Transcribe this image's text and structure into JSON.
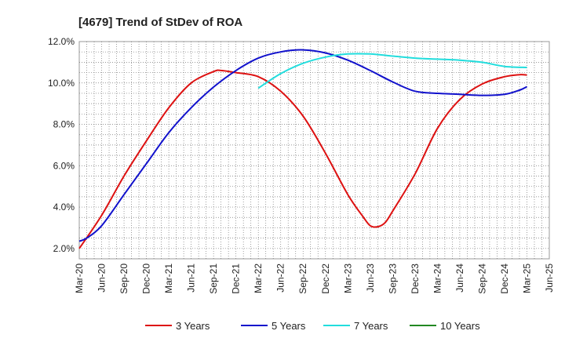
{
  "chart_data": {
    "type": "line",
    "title": "[4679]  Trend of StDev of ROA",
    "xlabel": "",
    "ylabel": "",
    "ylim": [
      1.5,
      12.0
    ],
    "yticks": [
      2.0,
      4.0,
      6.0,
      8.0,
      10.0,
      12.0
    ],
    "ytick_labels": [
      "2.0%",
      "4.0%",
      "6.0%",
      "8.0%",
      "10.0%",
      "12.0%"
    ],
    "x_tick_labels": [
      "Mar-20",
      "Jun-20",
      "Sep-20",
      "Dec-20",
      "Mar-21",
      "Jun-21",
      "Sep-21",
      "Dec-21",
      "Mar-22",
      "Jun-22",
      "Sep-22",
      "Dec-22",
      "Mar-23",
      "Jun-23",
      "Sep-23",
      "Dec-23",
      "Mar-24",
      "Jun-24",
      "Sep-24",
      "Dec-24",
      "Mar-25",
      "Jun-25"
    ],
    "grid": true,
    "legend_position": "bottom",
    "series": [
      {
        "name": "3 Years",
        "color": "#dd1111",
        "x": [
          "Mar-20",
          "Jun-20",
          "Sep-20",
          "Dec-20",
          "Mar-21",
          "Jun-21",
          "Sep-21",
          "Oct-21",
          "Dec-21",
          "Mar-22",
          "Jun-22",
          "Sep-22",
          "Dec-22",
          "Mar-23",
          "May-23",
          "Jun-23",
          "Jul-23",
          "Aug-23",
          "Sep-23",
          "Dec-23",
          "Mar-24",
          "Jun-24",
          "Sep-24",
          "Dec-24",
          "Feb-25",
          "Mar-25"
        ],
        "values": [
          2.0,
          3.6,
          5.5,
          7.2,
          8.8,
          10.0,
          10.55,
          10.6,
          10.5,
          10.3,
          9.6,
          8.4,
          6.6,
          4.6,
          3.55,
          3.1,
          3.05,
          3.25,
          3.8,
          5.6,
          7.8,
          9.2,
          9.95,
          10.3,
          10.4,
          10.38
        ]
      },
      {
        "name": "5 Years",
        "color": "#1111cc",
        "x": [
          "Mar-20",
          "Apr-20",
          "Jun-20",
          "Sep-20",
          "Dec-20",
          "Mar-21",
          "Jun-21",
          "Sep-21",
          "Dec-21",
          "Mar-22",
          "Jun-22",
          "Sep-22",
          "Dec-22",
          "Mar-23",
          "Jun-23",
          "Sep-23",
          "Dec-23",
          "Mar-24",
          "Jun-24",
          "Sep-24",
          "Dec-24",
          "Feb-25",
          "Mar-25"
        ],
        "values": [
          2.35,
          2.5,
          3.1,
          4.6,
          6.1,
          7.6,
          8.8,
          9.8,
          10.6,
          11.2,
          11.5,
          11.6,
          11.45,
          11.1,
          10.6,
          10.05,
          9.6,
          9.5,
          9.45,
          9.4,
          9.45,
          9.65,
          9.82
        ]
      },
      {
        "name": "7 Years",
        "color": "#22dddd",
        "x": [
          "Mar-22",
          "Jun-22",
          "Sep-22",
          "Dec-22",
          "Mar-23",
          "Jun-23",
          "Sep-23",
          "Dec-23",
          "Mar-24",
          "Jun-24",
          "Sep-24",
          "Dec-24",
          "Mar-25"
        ],
        "values": [
          9.75,
          10.45,
          10.95,
          11.25,
          11.4,
          11.4,
          11.3,
          11.2,
          11.15,
          11.1,
          11.0,
          10.8,
          10.75
        ]
      },
      {
        "name": "10 Years",
        "color": "#228822",
        "x": [],
        "values": []
      }
    ]
  }
}
